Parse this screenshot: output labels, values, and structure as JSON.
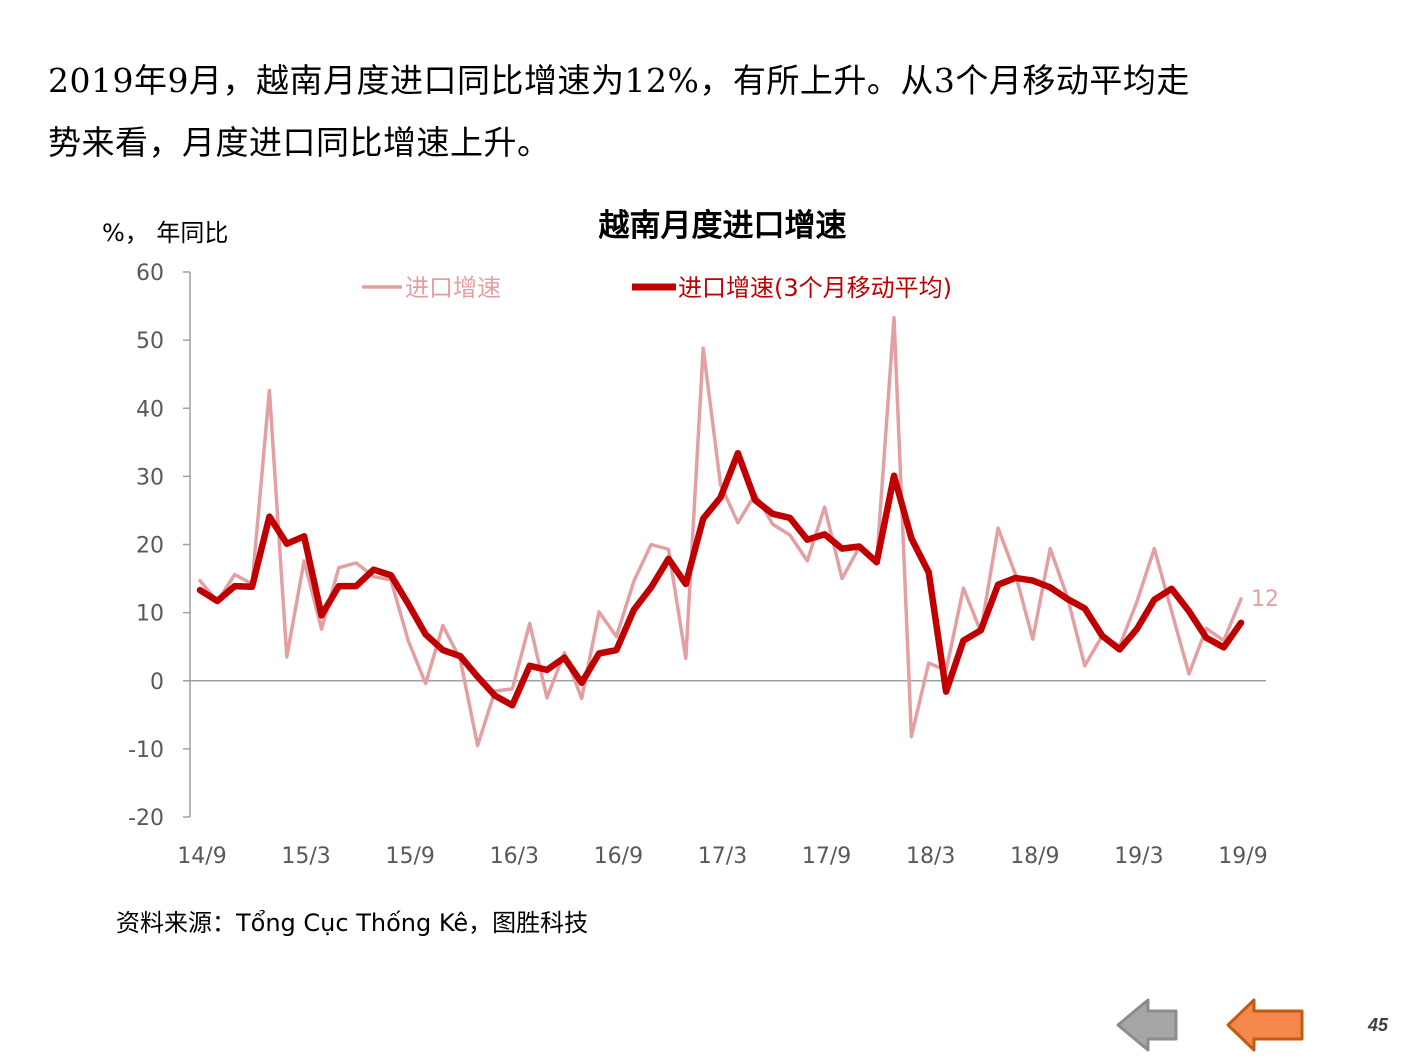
{
  "headline": {
    "line1": "2019年9月，越南月度进口同比增速为12%，有所上升。从3个月移动平均走",
    "line2": "势来看，月度进口同比增速上升。"
  },
  "unit_label": "%， 年同比",
  "source": "资料来源：Tổng Cục Thống Kê，图胜科技",
  "page_number": "45",
  "nav": {
    "back_icon": "arrow-left-gray",
    "forward_icon": "arrow-left-orange"
  },
  "colors": {
    "raw_series": "#e3a0a2",
    "ma_series": "#c00000",
    "axis": "#a0a0a0",
    "tick_text": "#595959",
    "back_button": "#a6a6a6",
    "forward_button": "#f4874b"
  },
  "chart_data": {
    "type": "line",
    "title": "越南月度进口增速",
    "ylabel": "%， 年同比",
    "xlabel": "",
    "ylim": [
      -20,
      60
    ],
    "y_ticks": [
      60,
      50,
      40,
      30,
      20,
      10,
      0,
      -10,
      -20
    ],
    "x_tick_labels": [
      "14/9",
      "15/3",
      "15/9",
      "16/3",
      "16/9",
      "17/3",
      "17/9",
      "18/3",
      "18/9",
      "19/3",
      "19/9"
    ],
    "x": [
      "14/9",
      "14/10",
      "14/11",
      "14/12",
      "15/1",
      "15/2",
      "15/3",
      "15/4",
      "15/5",
      "15/6",
      "15/7",
      "15/8",
      "15/9",
      "15/10",
      "15/11",
      "15/12",
      "16/1",
      "16/2",
      "16/3",
      "16/4",
      "16/5",
      "16/6",
      "16/7",
      "16/8",
      "16/9",
      "16/10",
      "16/11",
      "16/12",
      "17/1",
      "17/2",
      "17/3",
      "17/4",
      "17/5",
      "17/6",
      "17/7",
      "17/8",
      "17/9",
      "17/10",
      "17/11",
      "17/12",
      "18/1",
      "18/2",
      "18/3",
      "18/4",
      "18/5",
      "18/6",
      "18/7",
      "18/8",
      "18/9",
      "18/10",
      "18/11",
      "18/12",
      "19/1",
      "19/2",
      "19/3",
      "19/4",
      "19/5",
      "19/6",
      "19/7",
      "19/8",
      "19/9"
    ],
    "series": [
      {
        "name": "进口增速",
        "values": [
          14.7,
          11.6,
          15.6,
          14.2,
          42.6,
          3.5,
          17.6,
          7.6,
          16.6,
          17.3,
          15.3,
          14.8,
          5.9,
          -0.4,
          8.1,
          3.1,
          -9.5,
          -1.5,
          -1.2,
          8.4,
          -2.5,
          4.1,
          -2.6,
          10.1,
          6.5,
          14.6,
          20.0,
          19.3,
          3.3,
          48.8,
          28.8,
          23.2,
          27.4,
          23.0,
          21.4,
          17.6,
          25.5,
          15.0,
          19.6,
          17.5,
          53.3,
          -8.2,
          2.6,
          1.5,
          13.6,
          7.2,
          22.4,
          15.6,
          6.1,
          19.4,
          12.2,
          2.2,
          6.6,
          5.1,
          11.6,
          19.4,
          10.2,
          1.0,
          7.7,
          5.9,
          12.0
        ]
      },
      {
        "name": "进口增速(3个月移动平均)",
        "values": [
          13.3,
          11.7,
          13.9,
          13.8,
          24.1,
          20.1,
          21.2,
          9.6,
          13.9,
          13.9,
          16.3,
          15.5,
          11.3,
          6.8,
          4.5,
          3.6,
          0.6,
          -2.2,
          -3.6,
          2.2,
          1.6,
          3.4,
          -0.3,
          4.0,
          4.5,
          10.4,
          13.7,
          17.9,
          14.2,
          23.8,
          26.9,
          33.4,
          26.5,
          24.5,
          23.9,
          20.7,
          21.5,
          19.4,
          19.7,
          17.4,
          30.1,
          20.9,
          15.9,
          -1.6,
          5.9,
          7.4,
          14.1,
          15.1,
          14.7,
          13.7,
          12.0,
          10.6,
          6.6,
          4.6,
          7.6,
          11.9,
          13.5,
          10.2,
          6.3,
          4.9,
          8.5
        ]
      }
    ],
    "last_value_label": "12",
    "legend_position": "top",
    "grid": false
  }
}
